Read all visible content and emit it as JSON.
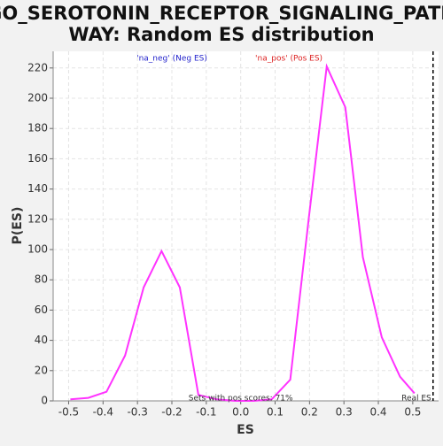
{
  "chart_data": {
    "type": "line",
    "title": [
      "GO_SEROTONIN_RECEPTOR_SIGNALING_PATH",
      "WAY: Random ES distribution"
    ],
    "x_label": "ES",
    "y_label": "P(ES)",
    "x": [
      -0.495,
      -0.443,
      -0.39,
      -0.336,
      -0.282,
      -0.23,
      -0.177,
      -0.123,
      -0.07,
      -0.016,
      0.038,
      0.09,
      0.144,
      0.198,
      0.25,
      0.304,
      0.355,
      0.41,
      0.463,
      0.505
    ],
    "series": [
      {
        "color": "#ff33ff",
        "values": [
          1,
          2,
          6,
          30,
          75,
          99,
          75,
          4,
          1,
          0,
          0,
          1,
          14,
          121,
          221,
          194,
          95,
          42,
          16,
          5
        ]
      }
    ],
    "xlim": [
      -0.545,
      0.575
    ],
    "ylim": [
      0,
      231
    ],
    "xticks": [
      -0.5,
      -0.4,
      -0.3,
      -0.2,
      -0.1,
      {
        "value": 0,
        "label": "0.0"
      },
      0.1,
      0.2,
      0.3,
      0.4,
      0.5
    ],
    "yticks": [
      0,
      20,
      40,
      60,
      80,
      100,
      120,
      140,
      160,
      180,
      200,
      220
    ],
    "grid": true,
    "real_es": 0.559,
    "real_es_label": "Real ES",
    "annotations": [
      {
        "text": "'na_neg' (Neg ES)",
        "color": "#2222cc",
        "x": -0.2
      },
      {
        "text": "'na_pos' (Pos ES)",
        "color": "#dd2222",
        "x": 0.14
      },
      {
        "text": "Sets with pos scores: 71%",
        "color": "#333333",
        "x": 0.0
      }
    ]
  }
}
